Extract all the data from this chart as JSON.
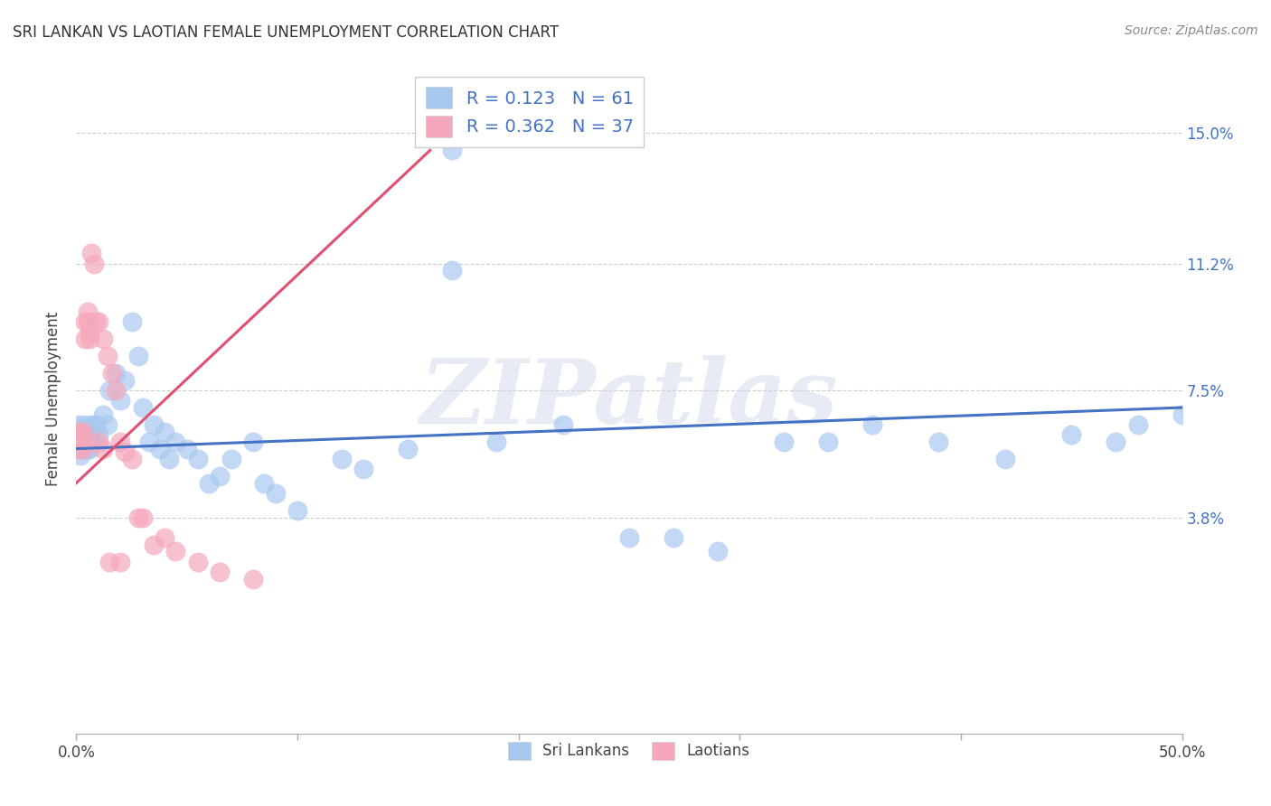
{
  "title": "SRI LANKAN VS LAOTIAN FEMALE UNEMPLOYMENT CORRELATION CHART",
  "source": "Source: ZipAtlas.com",
  "ylabel": "Female Unemployment",
  "yticks": [
    "3.8%",
    "7.5%",
    "11.2%",
    "15.0%"
  ],
  "ytick_vals": [
    0.038,
    0.075,
    0.112,
    0.15
  ],
  "xlim": [
    0.0,
    0.5
  ],
  "ylim": [
    -0.025,
    0.17
  ],
  "sri_lankan_color": "#A8C8F0",
  "laotian_color": "#F5A8BC",
  "sri_lankan_line_color": "#4472C4",
  "laotian_line_color": "#E05070",
  "sri_lankan_R": "0.123",
  "sri_lankan_N": "61",
  "laotian_R": "0.362",
  "laotian_N": "37",
  "watermark": "ZIPatlas",
  "sl_x": [
    0.001,
    0.001,
    0.001,
    0.002,
    0.002,
    0.002,
    0.003,
    0.003,
    0.004,
    0.004,
    0.005,
    0.005,
    0.006,
    0.006,
    0.007,
    0.008,
    0.009,
    0.01,
    0.012,
    0.014,
    0.015,
    0.018,
    0.02,
    0.022,
    0.025,
    0.028,
    0.03,
    0.033,
    0.035,
    0.038,
    0.04,
    0.042,
    0.045,
    0.05,
    0.055,
    0.06,
    0.065,
    0.07,
    0.08,
    0.085,
    0.09,
    0.1,
    0.12,
    0.13,
    0.15,
    0.17,
    0.19,
    0.22,
    0.25,
    0.27,
    0.29,
    0.32,
    0.34,
    0.36,
    0.39,
    0.42,
    0.45,
    0.47,
    0.48,
    0.5,
    0.17
  ],
  "sl_y": [
    0.065,
    0.06,
    0.058,
    0.063,
    0.06,
    0.056,
    0.062,
    0.058,
    0.065,
    0.06,
    0.063,
    0.058,
    0.062,
    0.058,
    0.065,
    0.06,
    0.065,
    0.062,
    0.068,
    0.065,
    0.075,
    0.08,
    0.072,
    0.078,
    0.095,
    0.085,
    0.07,
    0.06,
    0.065,
    0.058,
    0.063,
    0.055,
    0.06,
    0.058,
    0.055,
    0.048,
    0.05,
    0.055,
    0.06,
    0.048,
    0.045,
    0.04,
    0.055,
    0.052,
    0.058,
    0.11,
    0.06,
    0.065,
    0.032,
    0.032,
    0.028,
    0.06,
    0.06,
    0.065,
    0.06,
    0.055,
    0.062,
    0.06,
    0.065,
    0.068,
    0.145
  ],
  "la_x": [
    0.001,
    0.001,
    0.001,
    0.002,
    0.002,
    0.003,
    0.003,
    0.003,
    0.004,
    0.004,
    0.005,
    0.005,
    0.006,
    0.006,
    0.007,
    0.008,
    0.009,
    0.01,
    0.012,
    0.014,
    0.016,
    0.018,
    0.02,
    0.022,
    0.025,
    0.028,
    0.03,
    0.035,
    0.04,
    0.045,
    0.055,
    0.065,
    0.08,
    0.01,
    0.012,
    0.015,
    0.02
  ],
  "la_y": [
    0.062,
    0.058,
    0.063,
    0.06,
    0.062,
    0.063,
    0.06,
    0.058,
    0.095,
    0.09,
    0.095,
    0.098,
    0.092,
    0.09,
    0.115,
    0.112,
    0.095,
    0.095,
    0.09,
    0.085,
    0.08,
    0.075,
    0.06,
    0.057,
    0.055,
    0.038,
    0.038,
    0.03,
    0.032,
    0.028,
    0.025,
    0.022,
    0.02,
    0.06,
    0.058,
    0.025,
    0.025
  ],
  "sl_trend_x": [
    0.0,
    0.5
  ],
  "sl_trend_y": [
    0.058,
    0.07
  ],
  "la_trend_x": [
    0.0,
    0.16
  ],
  "la_trend_y": [
    0.048,
    0.145
  ]
}
